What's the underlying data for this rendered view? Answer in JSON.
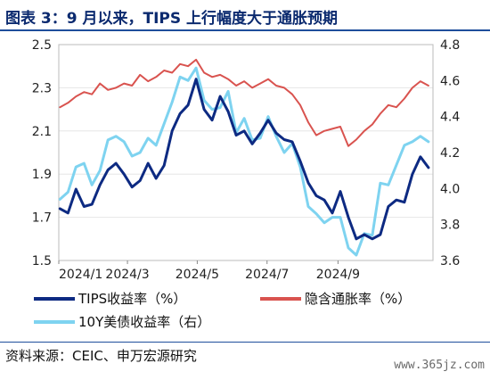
{
  "header": {
    "title": "图表 3：9 月以来，TIPS 上行幅度大于通胀预期"
  },
  "footer": {
    "source": "资料来源：CEIC、申万宏源研究",
    "watermark": "www.365jz.com"
  },
  "colors": {
    "tips": "#0d2a82",
    "breakeven": "#d9534f",
    "ust10y": "#7ed3f0",
    "title": "#0b2a6f",
    "grid": "#e6e6e6"
  },
  "chart_data": {
    "type": "line",
    "x_ticks": [
      "2024/1",
      "2024/3",
      "2024/5",
      "2024/7",
      "2024/9"
    ],
    "y_left": {
      "ticks": [
        "2.5",
        "2.3",
        "2.1",
        "1.9",
        "1.7",
        "1.5"
      ],
      "ylim": [
        1.5,
        2.5
      ]
    },
    "y_right": {
      "ticks": [
        "4.8",
        "4.6",
        "4.4",
        "4.2",
        "4.0",
        "3.8",
        "3.6"
      ],
      "ylim": [
        3.6,
        4.8
      ]
    },
    "legend": [
      {
        "key": "tips",
        "label": "TIPS收益率（%）"
      },
      {
        "key": "breakeven",
        "label": "隐含通胀率（%）"
      },
      {
        "key": "ust10y",
        "label": "10Y美债收益率（右）"
      }
    ],
    "series": [
      {
        "key": "tips",
        "name": "TIPS收益率（%）",
        "axis": "left",
        "x": [
          "2024-01-02",
          "2024-01-09",
          "2024-01-16",
          "2024-01-23",
          "2024-01-30",
          "2024-02-06",
          "2024-02-13",
          "2024-02-20",
          "2024-02-27",
          "2024-03-05",
          "2024-03-12",
          "2024-03-19",
          "2024-03-26",
          "2024-04-02",
          "2024-04-09",
          "2024-04-16",
          "2024-04-23",
          "2024-04-30",
          "2024-05-07",
          "2024-05-14",
          "2024-05-21",
          "2024-05-28",
          "2024-06-04",
          "2024-06-11",
          "2024-06-18",
          "2024-06-25",
          "2024-07-02",
          "2024-07-09",
          "2024-07-16",
          "2024-07-23",
          "2024-07-30",
          "2024-08-06",
          "2024-08-13",
          "2024-08-20",
          "2024-08-27",
          "2024-09-03",
          "2024-09-10",
          "2024-09-17",
          "2024-09-24",
          "2024-10-01",
          "2024-10-08",
          "2024-10-15",
          "2024-10-22",
          "2024-10-29",
          "2024-11-05",
          "2024-11-12",
          "2024-11-19"
        ],
        "values": [
          1.74,
          1.72,
          1.83,
          1.75,
          1.76,
          1.85,
          1.92,
          1.95,
          1.9,
          1.84,
          1.87,
          1.95,
          1.88,
          1.94,
          2.1,
          2.18,
          2.22,
          2.34,
          2.2,
          2.15,
          2.26,
          2.19,
          2.08,
          2.1,
          2.04,
          2.09,
          2.15,
          2.09,
          2.06,
          2.05,
          1.96,
          1.86,
          1.8,
          1.78,
          1.72,
          1.82,
          1.7,
          1.6,
          1.62,
          1.6,
          1.62,
          1.75,
          1.78,
          1.77,
          1.9,
          1.98,
          1.93
        ]
      },
      {
        "key": "breakeven",
        "name": "隐含通胀率（%）",
        "axis": "left",
        "x": [
          "2024-01-02",
          "2024-01-09",
          "2024-01-16",
          "2024-01-23",
          "2024-01-30",
          "2024-02-06",
          "2024-02-13",
          "2024-02-20",
          "2024-02-27",
          "2024-03-05",
          "2024-03-12",
          "2024-03-19",
          "2024-03-26",
          "2024-04-02",
          "2024-04-09",
          "2024-04-16",
          "2024-04-23",
          "2024-04-30",
          "2024-05-07",
          "2024-05-14",
          "2024-05-21",
          "2024-05-28",
          "2024-06-04",
          "2024-06-11",
          "2024-06-18",
          "2024-06-25",
          "2024-07-02",
          "2024-07-09",
          "2024-07-16",
          "2024-07-23",
          "2024-07-30",
          "2024-08-06",
          "2024-08-13",
          "2024-08-20",
          "2024-08-27",
          "2024-09-03",
          "2024-09-10",
          "2024-09-17",
          "2024-09-24",
          "2024-10-01",
          "2024-10-08",
          "2024-10-15",
          "2024-10-22",
          "2024-10-29",
          "2024-11-05",
          "2024-11-12",
          "2024-11-19"
        ],
        "values": [
          2.21,
          2.23,
          2.26,
          2.28,
          2.27,
          2.32,
          2.29,
          2.3,
          2.32,
          2.31,
          2.36,
          2.33,
          2.35,
          2.38,
          2.37,
          2.41,
          2.4,
          2.43,
          2.37,
          2.35,
          2.36,
          2.34,
          2.31,
          2.33,
          2.3,
          2.32,
          2.34,
          2.31,
          2.3,
          2.27,
          2.22,
          2.14,
          2.08,
          2.1,
          2.11,
          2.12,
          2.03,
          2.06,
          2.1,
          2.13,
          2.18,
          2.22,
          2.21,
          2.25,
          2.3,
          2.33,
          2.31
        ]
      },
      {
        "key": "ust10y",
        "name": "10Y美债收益率（右）",
        "axis": "right",
        "x": [
          "2024-01-02",
          "2024-01-09",
          "2024-01-16",
          "2024-01-23",
          "2024-01-30",
          "2024-02-06",
          "2024-02-13",
          "2024-02-20",
          "2024-02-27",
          "2024-03-05",
          "2024-03-12",
          "2024-03-19",
          "2024-03-26",
          "2024-04-02",
          "2024-04-09",
          "2024-04-16",
          "2024-04-23",
          "2024-04-30",
          "2024-05-07",
          "2024-05-14",
          "2024-05-21",
          "2024-05-28",
          "2024-06-04",
          "2024-06-11",
          "2024-06-18",
          "2024-06-25",
          "2024-07-02",
          "2024-07-09",
          "2024-07-16",
          "2024-07-23",
          "2024-07-30",
          "2024-08-06",
          "2024-08-13",
          "2024-08-20",
          "2024-08-27",
          "2024-09-03",
          "2024-09-10",
          "2024-09-17",
          "2024-09-24",
          "2024-10-01",
          "2024-10-08",
          "2024-10-15",
          "2024-10-22",
          "2024-10-29",
          "2024-11-05",
          "2024-11-12",
          "2024-11-19"
        ],
        "values": [
          3.94,
          3.98,
          4.12,
          4.14,
          4.02,
          4.1,
          4.27,
          4.29,
          4.26,
          4.18,
          4.2,
          4.28,
          4.24,
          4.36,
          4.48,
          4.62,
          4.6,
          4.67,
          4.49,
          4.44,
          4.45,
          4.54,
          4.31,
          4.39,
          4.27,
          4.28,
          4.4,
          4.29,
          4.2,
          4.25,
          4.12,
          3.9,
          3.86,
          3.81,
          3.84,
          3.84,
          3.67,
          3.63,
          3.75,
          3.74,
          4.03,
          4.02,
          4.13,
          4.24,
          4.26,
          4.29,
          4.26
        ]
      }
    ]
  }
}
